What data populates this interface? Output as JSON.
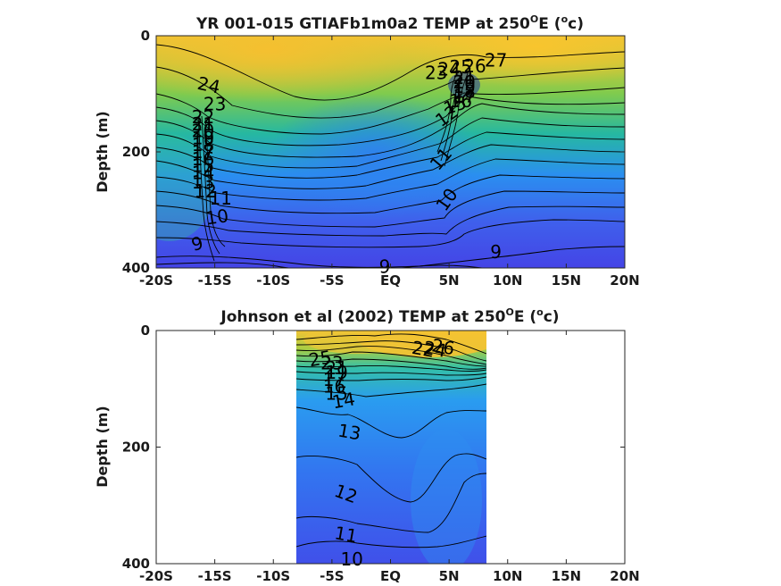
{
  "chart_data": [
    {
      "type": "contour",
      "title": "YR 001-015 GTIAFb1m0a2 TEMP at 250",
      "title_sup1": "O",
      "title_mid": "E (",
      "title_sup2": "o",
      "title_end": "c)",
      "xlabel": "",
      "ylabel": "Depth (m)",
      "xlim": [
        -20,
        20
      ],
      "ylim": [
        400,
        0
      ],
      "x_ticks": [
        "-20S",
        "-15S",
        "-10S",
        "-5S",
        "EQ",
        "5N",
        "10N",
        "15N",
        "20N"
      ],
      "y_ticks": [
        "0",
        "200",
        "400"
      ],
      "colorscale": [
        "#3f48e8",
        "#2c8ef0",
        "#22c0a0",
        "#8fd040",
        "#f3c032"
      ],
      "contour_labels": [
        {
          "text": "24",
          "lat": -15.5,
          "depth": 85,
          "rot": 12
        },
        {
          "text": "23",
          "lat": -15,
          "depth": 118,
          "rot": 0
        },
        {
          "text": "22",
          "lat": -16,
          "depth": 140,
          "rot": 0
        },
        {
          "text": "21",
          "lat": -16,
          "depth": 152,
          "rot": 0
        },
        {
          "text": "20",
          "lat": -16,
          "depth": 164,
          "rot": 0
        },
        {
          "text": "19",
          "lat": -16,
          "depth": 176,
          "rot": 0
        },
        {
          "text": "18",
          "lat": -16,
          "depth": 188,
          "rot": 0
        },
        {
          "text": "17",
          "lat": -16,
          "depth": 200,
          "rot": 0
        },
        {
          "text": "16",
          "lat": -16,
          "depth": 212,
          "rot": 0
        },
        {
          "text": "15",
          "lat": -16,
          "depth": 224,
          "rot": 0
        },
        {
          "text": "14",
          "lat": -16,
          "depth": 236,
          "rot": 0
        },
        {
          "text": "13",
          "lat": -16,
          "depth": 252,
          "rot": 0
        },
        {
          "text": "12",
          "lat": -15.8,
          "depth": 268,
          "rot": 0
        },
        {
          "text": "11",
          "lat": -14.5,
          "depth": 280,
          "rot": 0
        },
        {
          "text": "10",
          "lat": -14.8,
          "depth": 312,
          "rot": -8
        },
        {
          "text": "9",
          "lat": -16.5,
          "depth": 358,
          "rot": -15
        },
        {
          "text": "9",
          "lat": -0.5,
          "depth": 398,
          "rot": 0
        },
        {
          "text": "9",
          "lat": 9,
          "depth": 372,
          "rot": 0
        },
        {
          "text": "10",
          "lat": 4.8,
          "depth": 282,
          "rot": -55
        },
        {
          "text": "11",
          "lat": 4.3,
          "depth": 212,
          "rot": -50
        },
        {
          "text": "12",
          "lat": 4.8,
          "depth": 138,
          "rot": -35
        },
        {
          "text": "15",
          "lat": 5.5,
          "depth": 120,
          "rot": -20
        },
        {
          "text": "16",
          "lat": 6,
          "depth": 112,
          "rot": 0
        },
        {
          "text": "17",
          "lat": 6.3,
          "depth": 104,
          "rot": 0
        },
        {
          "text": "18",
          "lat": 6.3,
          "depth": 96,
          "rot": 0
        },
        {
          "text": "19",
          "lat": 6.3,
          "depth": 88,
          "rot": 0
        },
        {
          "text": "20",
          "lat": 6.3,
          "depth": 80,
          "rot": 0
        },
        {
          "text": "21",
          "lat": 6.3,
          "depth": 72,
          "rot": 0
        },
        {
          "text": "23",
          "lat": 3.9,
          "depth": 64,
          "rot": 0
        },
        {
          "text": "24",
          "lat": 5.0,
          "depth": 58,
          "rot": 0
        },
        {
          "text": "25",
          "lat": 6.0,
          "depth": 54,
          "rot": 0
        },
        {
          "text": "26",
          "lat": 7.2,
          "depth": 52,
          "rot": 0
        },
        {
          "text": "27",
          "lat": 9.0,
          "depth": 42,
          "rot": 0
        }
      ]
    },
    {
      "type": "contour",
      "title": "Johnson et al (2002) TEMP at 250",
      "title_sup1": "O",
      "title_mid": "E (",
      "title_sup2": "o",
      "title_end": "c)",
      "xlabel": "",
      "ylabel": "Depth (m)",
      "xlim": [
        -20,
        20
      ],
      "ylim": [
        400,
        0
      ],
      "data_lat_range": [
        -8,
        8.2
      ],
      "x_ticks": [
        "-20S",
        "-15S",
        "-10S",
        "-5S",
        "EQ",
        "5N",
        "10N",
        "15N",
        "20N"
      ],
      "y_ticks": [
        "0",
        "200",
        "400"
      ],
      "colorscale": [
        "#3f48e8",
        "#2c8ef0",
        "#22c0a0",
        "#8fd040",
        "#f3c032"
      ],
      "contour_labels": [
        {
          "text": "25",
          "lat": -6,
          "depth": 48,
          "rot": -10
        },
        {
          "text": "23",
          "lat": -5,
          "depth": 56,
          "rot": 0
        },
        {
          "text": "21",
          "lat": -4.6,
          "depth": 64,
          "rot": 0
        },
        {
          "text": "19",
          "lat": -4.6,
          "depth": 72,
          "rot": 0
        },
        {
          "text": "17",
          "lat": -4.8,
          "depth": 84,
          "rot": 0
        },
        {
          "text": "16",
          "lat": -4.8,
          "depth": 96,
          "rot": 0
        },
        {
          "text": "15",
          "lat": -4.6,
          "depth": 108,
          "rot": 0
        },
        {
          "text": "14",
          "lat": -4,
          "depth": 120,
          "rot": -10
        },
        {
          "text": "13",
          "lat": -3.5,
          "depth": 174,
          "rot": 10
        },
        {
          "text": "12",
          "lat": -3.8,
          "depth": 280,
          "rot": 20
        },
        {
          "text": "11",
          "lat": -3.8,
          "depth": 350,
          "rot": 10
        },
        {
          "text": "10",
          "lat": -3.3,
          "depth": 392,
          "rot": 0
        },
        {
          "text": "22",
          "lat": 2.8,
          "depth": 32,
          "rot": 10
        },
        {
          "text": "24",
          "lat": 3.8,
          "depth": 32,
          "rot": 10
        },
        {
          "text": "26",
          "lat": 4.5,
          "depth": 28,
          "rot": 10
        }
      ]
    }
  ]
}
